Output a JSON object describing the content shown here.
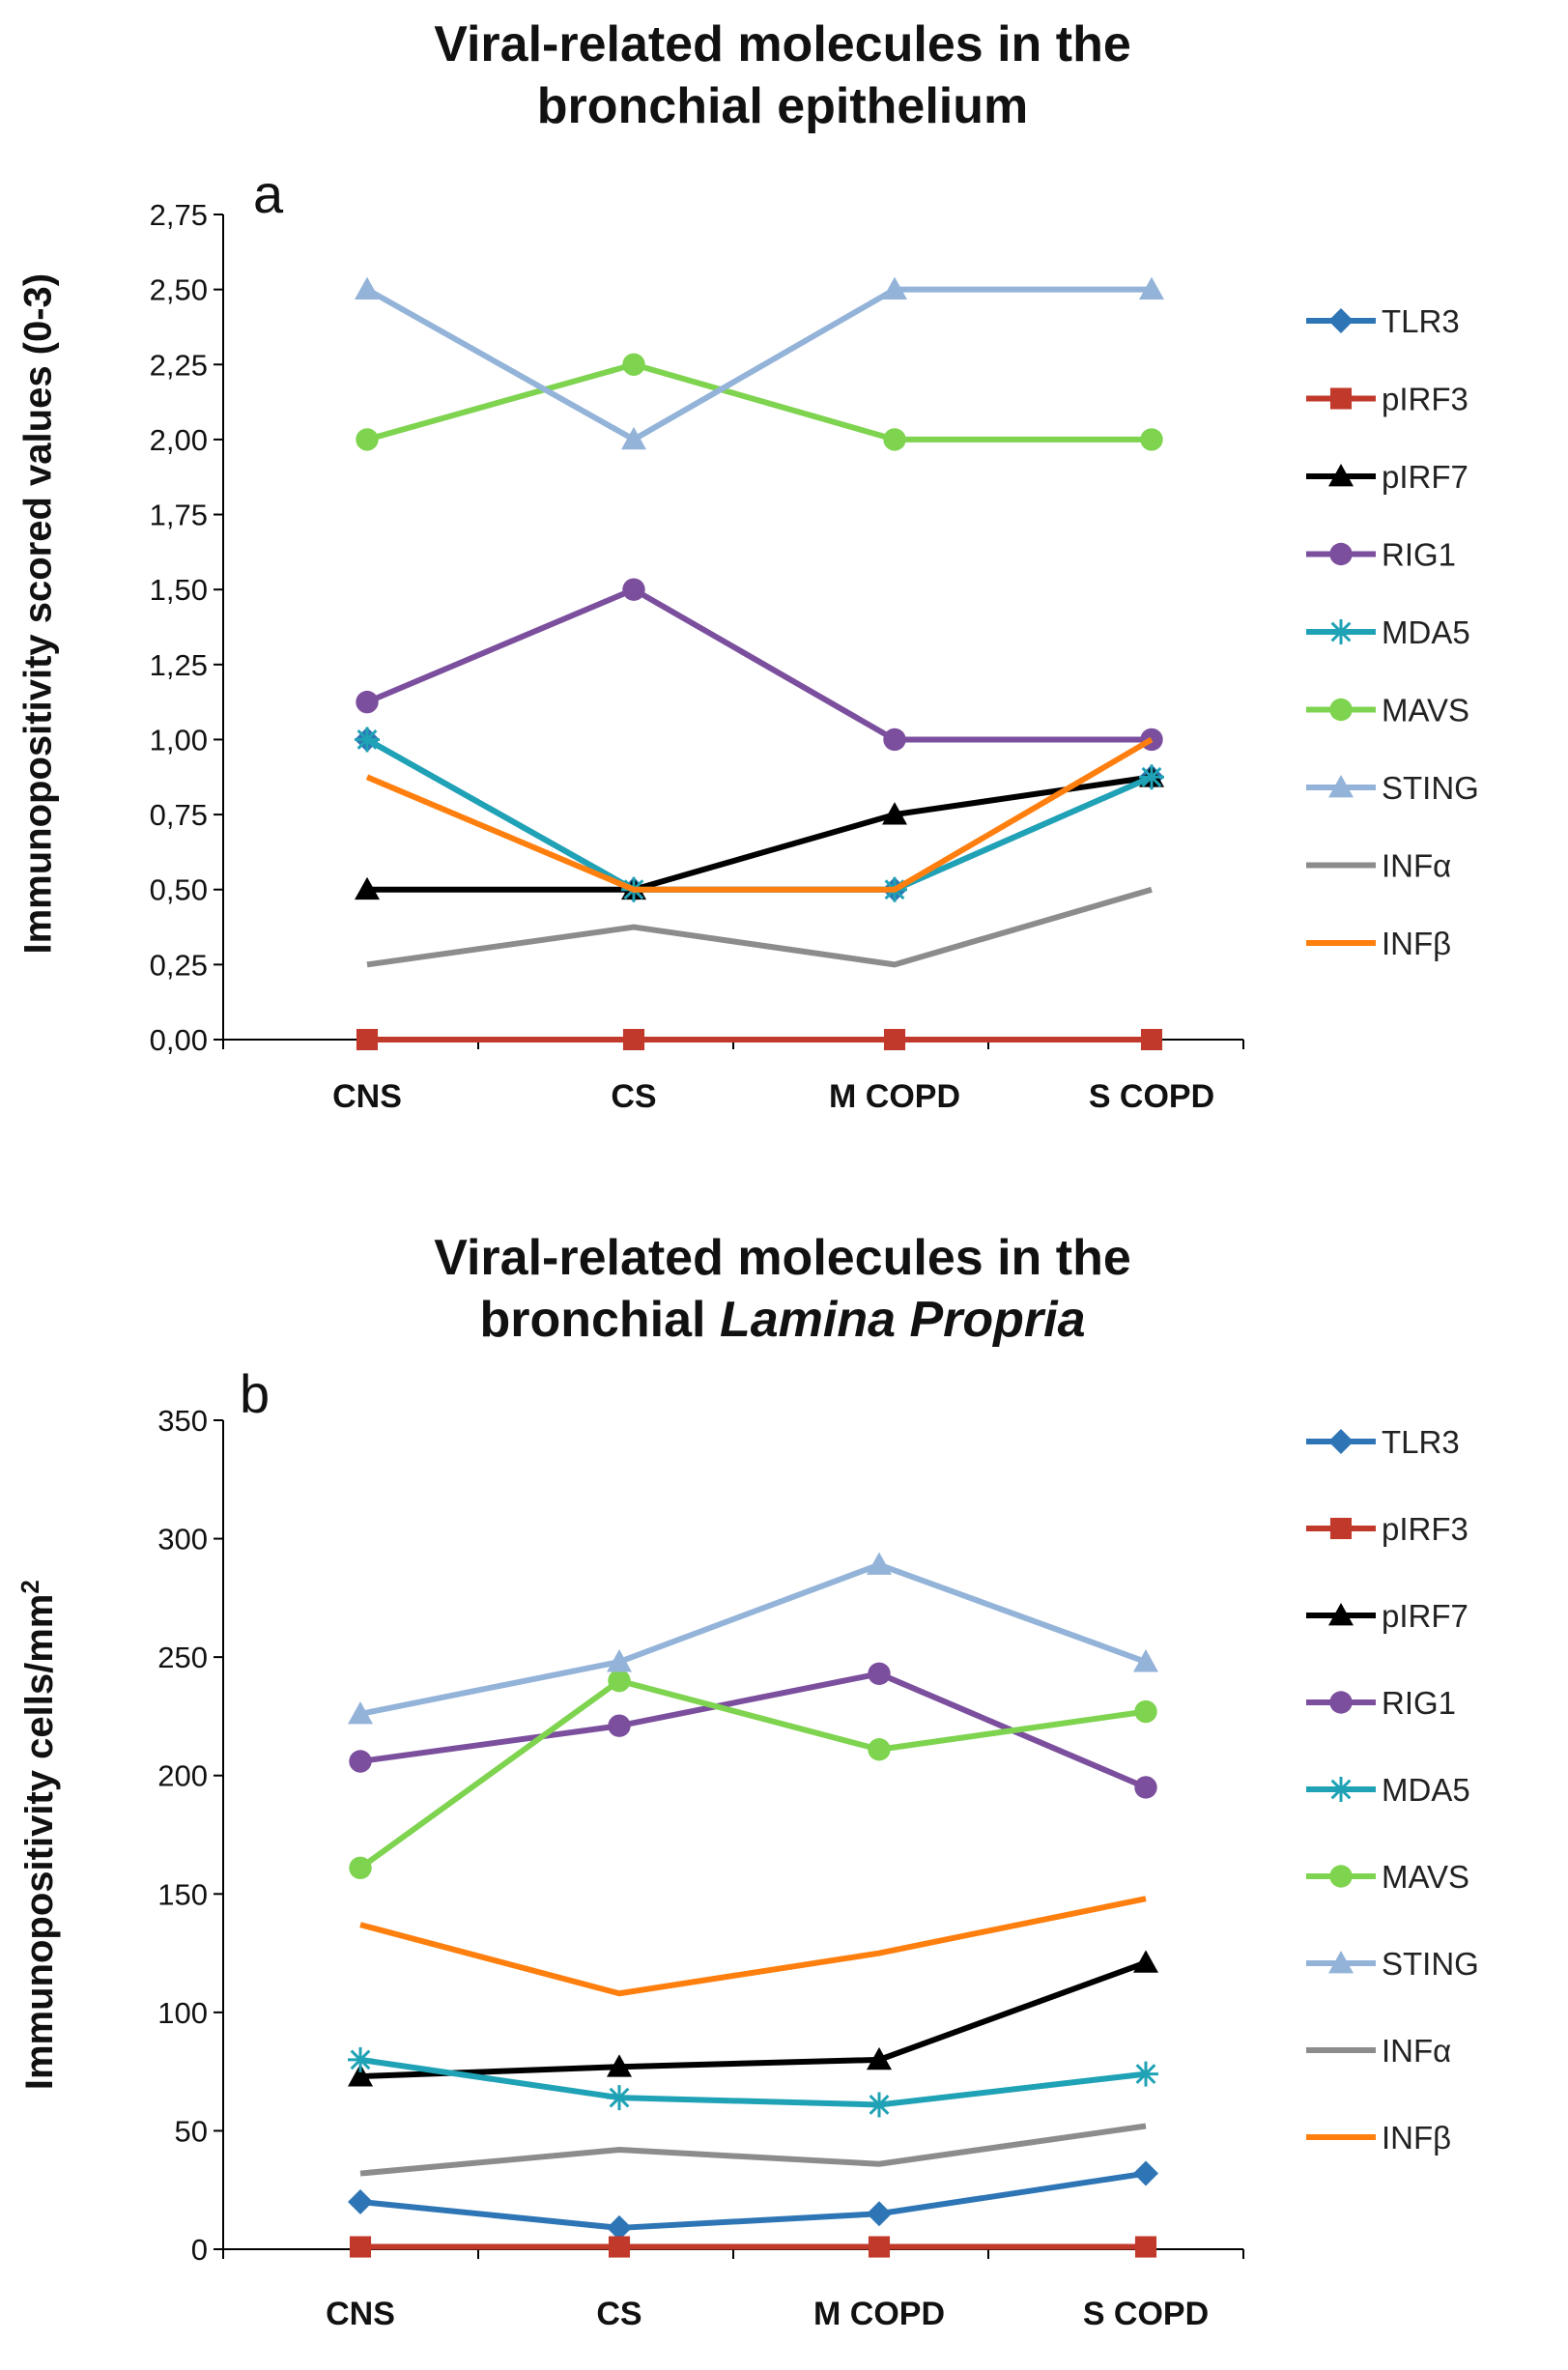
{
  "chart_data": [
    {
      "type": "line",
      "panel_label": "a",
      "title": [
        "Viral-related molecules in the",
        "bronchial epithelium"
      ],
      "xlabel": "",
      "ylabel": "Immunopositivity scored values (0-3)",
      "categories": [
        "CNS",
        "CS",
        "M COPD",
        "S COPD"
      ],
      "ylim": [
        0,
        2.75
      ],
      "yticks": [
        0,
        0.25,
        0.5,
        0.75,
        1.0,
        1.25,
        1.5,
        1.75,
        2.0,
        2.25,
        2.5,
        2.75
      ],
      "ytick_labels": [
        "0,00",
        "0,25",
        "0,50",
        "0,75",
        "1,00",
        "1,25",
        "1,50",
        "1,75",
        "2,00",
        "2,25",
        "2,50",
        "2,75"
      ],
      "legend_position": "right",
      "series": [
        {
          "name": "TLR3",
          "color": "#2E75B6",
          "marker": "diamond",
          "values": [
            1.0,
            0.5,
            0.5,
            0.875
          ]
        },
        {
          "name": "pIRF3",
          "color": "#C0392B",
          "marker": "square",
          "values": [
            0,
            0,
            0,
            0
          ]
        },
        {
          "name": "pIRF7",
          "color": "#000000",
          "marker": "triangle",
          "values": [
            0.5,
            0.5,
            0.75,
            0.875
          ]
        },
        {
          "name": "RIG1",
          "color": "#7B4F9D",
          "marker": "circle",
          "values": [
            1.125,
            1.5,
            1.0,
            1.0
          ]
        },
        {
          "name": "MDA5",
          "color": "#1FA2B5",
          "marker": "asterisk",
          "values": [
            1.0,
            0.5,
            0.5,
            0.875
          ]
        },
        {
          "name": "MAVS",
          "color": "#7ED34F",
          "marker": "circle",
          "values": [
            2.0,
            2.25,
            2.0,
            2.0
          ]
        },
        {
          "name": "STING",
          "color": "#93B3D9",
          "marker": "triangle",
          "values": [
            2.5,
            2.0,
            2.5,
            2.5
          ]
        },
        {
          "name": "INFα",
          "color": "#8C8C8C",
          "marker": "none",
          "values": [
            0.25,
            0.375,
            0.25,
            0.5
          ]
        },
        {
          "name": "INFβ",
          "color": "#FF7F0E",
          "marker": "none",
          "values": [
            0.875,
            0.5,
            0.5,
            1.0
          ]
        }
      ]
    },
    {
      "type": "line",
      "panel_label": "b",
      "title": [
        "Viral-related molecules in the",
        "bronchial ",
        "Lamina Propria"
      ],
      "xlabel": "",
      "ylabel": "Immunopositivity cells/mm",
      "ylabel_superscript": "2",
      "categories": [
        "CNS",
        "CS",
        "M COPD",
        "S COPD"
      ],
      "ylim": [
        0,
        350
      ],
      "yticks": [
        0,
        50,
        100,
        150,
        200,
        250,
        300,
        350
      ],
      "ytick_labels": [
        "0",
        "50",
        "100",
        "150",
        "200",
        "250",
        "300",
        "350"
      ],
      "legend_position": "right",
      "series": [
        {
          "name": "TLR3",
          "color": "#2E75B6",
          "marker": "diamond",
          "values": [
            20,
            9,
            15,
            32
          ]
        },
        {
          "name": "pIRF3",
          "color": "#C0392B",
          "marker": "square",
          "values": [
            1,
            1,
            1,
            1
          ]
        },
        {
          "name": "pIRF7",
          "color": "#000000",
          "marker": "triangle",
          "values": [
            73,
            77,
            80,
            121
          ]
        },
        {
          "name": "RIG1",
          "color": "#7B4F9D",
          "marker": "circle",
          "values": [
            206,
            221,
            243,
            195
          ]
        },
        {
          "name": "MDA5",
          "color": "#1FA2B5",
          "marker": "asterisk",
          "values": [
            80,
            64,
            61,
            74
          ]
        },
        {
          "name": "MAVS",
          "color": "#7ED34F",
          "marker": "circle",
          "values": [
            161,
            240,
            211,
            227
          ]
        },
        {
          "name": "STING",
          "color": "#93B3D9",
          "marker": "triangle",
          "values": [
            226,
            248,
            289,
            248
          ]
        },
        {
          "name": "INFα",
          "color": "#8C8C8C",
          "marker": "none",
          "values": [
            32,
            42,
            36,
            52
          ]
        },
        {
          "name": "INFβ",
          "color": "#FF7F0E",
          "marker": "none",
          "values": [
            137,
            108,
            125,
            148
          ]
        }
      ]
    }
  ]
}
